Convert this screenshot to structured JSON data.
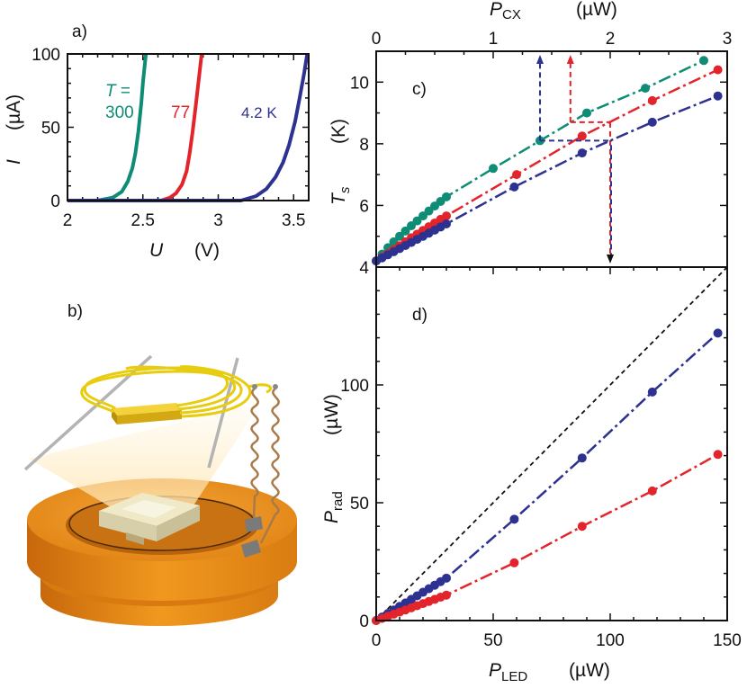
{
  "colors": {
    "green": "#0e8c76",
    "red": "#e3242b",
    "blue": "#2d3190",
    "axis": "#111111",
    "dashed_ref": "#111111",
    "wire_yellow": "#e8cc10",
    "wire_brown": "#a87a4a",
    "disk_orange": "#e58a14",
    "disk_dark": "#b86a10"
  },
  "panel_b": {
    "label": "b)"
  },
  "chart_data": [
    {
      "id": "a",
      "panel_label": "a)",
      "type": "line",
      "xlabel": "U",
      "xunit": "(V)",
      "ylabel": "I",
      "yunit": "(µA)",
      "xlim": [
        2.0,
        3.6
      ],
      "ylim": [
        0,
        100
      ],
      "xticks": [
        2,
        2.5,
        3,
        3.5
      ],
      "xtick_labels": [
        "2",
        "2.5",
        "3",
        "3.5"
      ],
      "yticks": [
        0,
        50,
        100
      ],
      "ytick_labels": [
        "0",
        "50",
        "100"
      ],
      "series": [
        {
          "name": "300",
          "color": "#0e8c76",
          "x": [
            2.2,
            2.3,
            2.36,
            2.4,
            2.43,
            2.45,
            2.47,
            2.49,
            2.5,
            2.52
          ],
          "y": [
            0,
            2,
            6,
            13,
            22,
            32,
            47,
            67,
            80,
            100
          ]
        },
        {
          "name": "77",
          "color": "#e3242b",
          "x": [
            2.62,
            2.68,
            2.72,
            2.76,
            2.79,
            2.81,
            2.83,
            2.85,
            2.87,
            2.89
          ],
          "y": [
            0,
            2,
            5,
            11,
            20,
            32,
            47,
            64,
            82,
            100
          ]
        },
        {
          "name": "4.2 K",
          "color": "#2d3190",
          "x": [
            3.15,
            3.25,
            3.32,
            3.38,
            3.43,
            3.47,
            3.51,
            3.54,
            3.57,
            3.59
          ],
          "y": [
            0,
            3,
            8,
            16,
            26,
            38,
            54,
            70,
            87,
            100
          ]
        }
      ],
      "annotations": [
        "T =",
        "300",
        "77",
        "4.2 K"
      ]
    },
    {
      "id": "c",
      "panel_label": "c)",
      "type": "line",
      "xlabel": "P",
      "xlabel_sub": "CX",
      "xunit": "(µW)",
      "ylabel": "T",
      "ylabel_sub": "s",
      "yunit": "(K)",
      "xlim": [
        0,
        3
      ],
      "ylim": [
        4,
        11
      ],
      "xticks": [
        0,
        1,
        2,
        3
      ],
      "xtick_labels": [
        "0",
        "1",
        "2",
        "3"
      ],
      "yticks": [
        4,
        6,
        8,
        10
      ],
      "ytick_labels": [
        "4",
        "6",
        "8",
        "10"
      ],
      "bottom_axis_shared_with": "d",
      "series": [
        {
          "name": "300 K",
          "color": "#0e8c76",
          "x_led": [
            0,
            2.5,
            5,
            7.5,
            10,
            12.5,
            15,
            17.5,
            20,
            22.5,
            25,
            27.5,
            30,
            50,
            70,
            90,
            115,
            140
          ],
          "y": [
            4.2,
            4.42,
            4.63,
            4.82,
            5.0,
            5.17,
            5.34,
            5.5,
            5.66,
            5.82,
            5.98,
            6.13,
            6.28,
            7.2,
            8.1,
            9.0,
            9.8,
            10.7
          ]
        },
        {
          "name": "77 K",
          "color": "#e3242b",
          "x_led": [
            0,
            2.5,
            5,
            7.5,
            10,
            12.5,
            15,
            17.5,
            20,
            22.5,
            25,
            27.5,
            30,
            60,
            88,
            118,
            146
          ],
          "y": [
            4.2,
            4.32,
            4.44,
            4.57,
            4.69,
            4.82,
            4.95,
            5.07,
            5.19,
            5.31,
            5.43,
            5.55,
            5.66,
            7.0,
            8.25,
            9.4,
            10.4
          ]
        },
        {
          "name": "4.2 K",
          "color": "#2d3190",
          "x_led": [
            0,
            2.5,
            5,
            7.5,
            10,
            12.5,
            15,
            17.5,
            20,
            22.5,
            25,
            27.5,
            30,
            59,
            88,
            118,
            146
          ],
          "y": [
            4.2,
            4.3,
            4.4,
            4.5,
            4.6,
            4.7,
            4.8,
            4.9,
            5.0,
            5.1,
            5.2,
            5.3,
            5.4,
            6.6,
            7.7,
            8.7,
            9.55
          ]
        }
      ],
      "guides": [
        {
          "color": "#2d3190",
          "x_led_from": 70,
          "x_led_to": 100,
          "y": 8.1,
          "arrow": "up"
        },
        {
          "color": "#e3242b",
          "x_led_from": 83,
          "x_led_to": 100,
          "y": 8.7,
          "arrow": "up"
        },
        {
          "color": "#111111",
          "x_led": 100,
          "arrow": "down"
        }
      ]
    },
    {
      "id": "d",
      "panel_label": "d)",
      "type": "line",
      "xlabel": "P",
      "xlabel_sub": "LED",
      "xunit": "(µW)",
      "ylabel": "P",
      "ylabel_sub": "rad",
      "yunit": "(µW)",
      "xlim": [
        0,
        150
      ],
      "ylim": [
        0,
        150
      ],
      "xticks": [
        0,
        50,
        100,
        150
      ],
      "xtick_labels": [
        "0",
        "50",
        "100",
        "150"
      ],
      "yticks": [
        0,
        50,
        100
      ],
      "ytick_labels": [
        "0",
        "50",
        "100"
      ],
      "reference_line": {
        "style": "dashed",
        "x": [
          0,
          150
        ],
        "y": [
          0,
          150
        ]
      },
      "series": [
        {
          "name": "4.2 K",
          "color": "#2d3190",
          "x": [
            0,
            2.5,
            5,
            7.5,
            10,
            12.5,
            15,
            17.5,
            20,
            22.5,
            25,
            27.5,
            30,
            59,
            88,
            118,
            146
          ],
          "y": [
            0,
            1.5,
            3,
            4.5,
            6,
            7.5,
            9,
            10.5,
            12,
            13.5,
            15,
            16.5,
            18,
            43,
            69,
            97,
            122
          ]
        },
        {
          "name": "77 K",
          "color": "#e3242b",
          "x": [
            0,
            2.5,
            5,
            7.5,
            10,
            12.5,
            15,
            17.5,
            20,
            22.5,
            25,
            27.5,
            30,
            59,
            88,
            118,
            146
          ],
          "y": [
            0,
            0.9,
            1.8,
            2.7,
            3.6,
            4.5,
            5.4,
            6.3,
            7.2,
            8.1,
            9.0,
            9.9,
            10.8,
            24.5,
            40,
            55,
            70.5
          ]
        }
      ]
    }
  ]
}
